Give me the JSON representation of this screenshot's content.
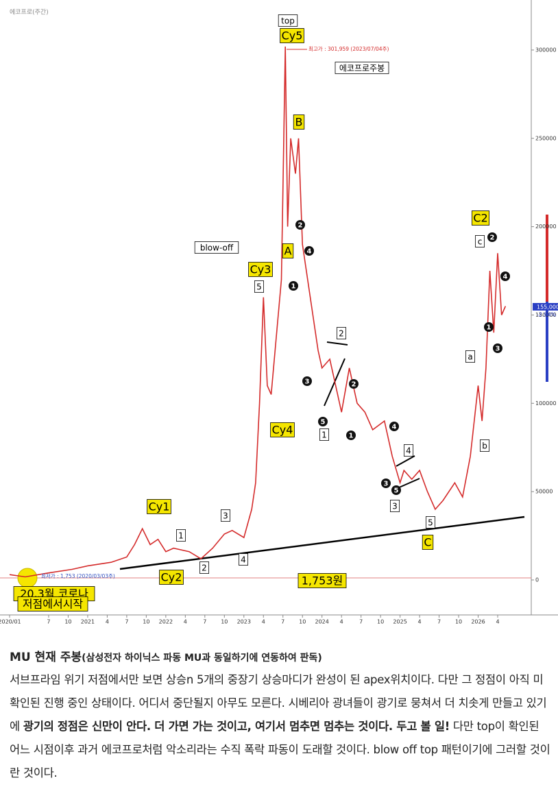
{
  "chart_data": {
    "type": "line",
    "corner_label": "에코프로(주간)",
    "series": [
      {
        "name": "에코프로주봉",
        "color": "#d42a2a",
        "x": [
          2020.0,
          2020.2,
          2020.5,
          2020.8,
          2021.0,
          2021.3,
          2021.5,
          2021.6,
          2021.7,
          2021.8,
          2021.9,
          2022.0,
          2022.1,
          2022.3,
          2022.45,
          2022.6,
          2022.75,
          2022.85,
          2023.0,
          2023.1,
          2023.15,
          2023.2,
          2023.25,
          2023.3,
          2023.35,
          2023.42,
          2023.48,
          2023.5,
          2023.53,
          2023.56,
          2023.6,
          2023.66,
          2023.7,
          2023.75,
          2023.85,
          2023.95,
          2024.0,
          2024.1,
          2024.15,
          2024.25,
          2024.35,
          2024.45,
          2024.55,
          2024.65,
          2024.8,
          2024.9,
          2025.0,
          2025.05,
          2025.15,
          2025.25,
          2025.35,
          2025.45,
          2025.55,
          2025.7,
          2025.8,
          2025.9,
          2026.0,
          2026.05,
          2026.1,
          2026.15,
          2026.2,
          2026.25,
          2026.3,
          2026.35
        ],
        "values": [
          3000,
          1753,
          4000,
          6000,
          8000,
          10000,
          13000,
          20000,
          29000,
          20000,
          23000,
          16000,
          18000,
          16000,
          12000,
          18000,
          26000,
          28000,
          24000,
          40000,
          55000,
          100000,
          160000,
          110000,
          105000,
          140000,
          170000,
          220000,
          301959,
          200000,
          250000,
          230000,
          250000,
          190000,
          160000,
          130000,
          120000,
          125000,
          115000,
          95000,
          120000,
          100000,
          95000,
          85000,
          90000,
          70000,
          55000,
          62000,
          57000,
          62000,
          50000,
          40000,
          45000,
          55000,
          47000,
          70000,
          110000,
          90000,
          120000,
          175000,
          140000,
          185000,
          150000,
          155000
        ]
      }
    ],
    "xlim": [
      2019.877,
      2026.68
    ],
    "ylim": [
      -19800,
      328300
    ],
    "xticks": [
      {
        "value": 2020,
        "label": "2020/01"
      },
      {
        "value": 2020.5,
        "label": "7"
      },
      {
        "value": 2020.75,
        "label": "10"
      },
      2021,
      {
        "value": 2021.25,
        "label": "4"
      },
      {
        "value": 2021.5,
        "label": "7"
      },
      {
        "value": 2021.75,
        "label": "10"
      },
      2022,
      {
        "value": 2022.25,
        "label": "4"
      },
      {
        "value": 2022.5,
        "label": "7"
      },
      {
        "value": 2022.75,
        "label": "10"
      },
      2023,
      {
        "value": 2023.25,
        "label": "4"
      },
      {
        "value": 2023.5,
        "label": "7"
      },
      {
        "value": 2023.75,
        "label": "10"
      },
      2024,
      {
        "value": 2024.25,
        "label": "4"
      },
      {
        "value": 2024.5,
        "label": "7"
      },
      {
        "value": 2024.75,
        "label": "10"
      },
      2025,
      {
        "value": 2025.25,
        "label": "4"
      },
      {
        "value": 2025.5,
        "label": "7"
      },
      {
        "value": 2025.75,
        "label": "10"
      },
      2026,
      {
        "value": 2026.25,
        "label": "4"
      }
    ],
    "yticks": [
      0,
      50000,
      100000,
      150000,
      200000,
      250000,
      300000
    ],
    "high_note": "최고가 : 301,959 (2023/07/04주)",
    "low_note": "최저가 : 1,753 (2020/03/03주)",
    "current_label": "155,000",
    "change_label": "-2.94%",
    "annotations": [
      "top",
      "Cy5",
      "B",
      "A",
      "Cy3",
      "5",
      "blow-off",
      "Cy4",
      "Cy1",
      "1",
      "3",
      "2",
      "4",
      "Cy2",
      "1,753원",
      "20.3월 코로나",
      "저점에서시작",
      "에코프로주봉",
      "C2",
      "c",
      "2",
      "4",
      "1",
      "3",
      "a",
      "b",
      "2",
      "4",
      "1",
      "3",
      "5",
      "1",
      "2",
      "2",
      "1",
      "4",
      "4",
      "3",
      "5",
      "3",
      "5",
      "C"
    ]
  },
  "article": {
    "title": "MU 현재 주봉",
    "subtitle": "(삼성전자 하이닉스 파동 MU과 동일하기에 연동하여 판독)",
    "body": [
      "서브프라임 위기 저점에서만 보면 상승n 5개의 중장기 상승마디가 완성이 된 apex위치이다. 다만 그 정점이 아직 미확인된 진행 중인 상태이다. 어디서 중단될지 아무도 모른다. 시베리아 광녀들이 광기로 뭉쳐서 더 치솟게 만들고 있기에 ",
      "광기의 정점은 신만이 안다. 더 가면 가는 것이고, 여기서 멈추면 멈추는 것이다. 두고 볼 일!",
      " 다만 top이 확인된 어느 시점이후 과거 에코프로처럼 악소리라는 수직 폭락 파동이 도래할 것이다. blow off top 패턴이기에 그러할 것이란 것이다."
    ]
  }
}
